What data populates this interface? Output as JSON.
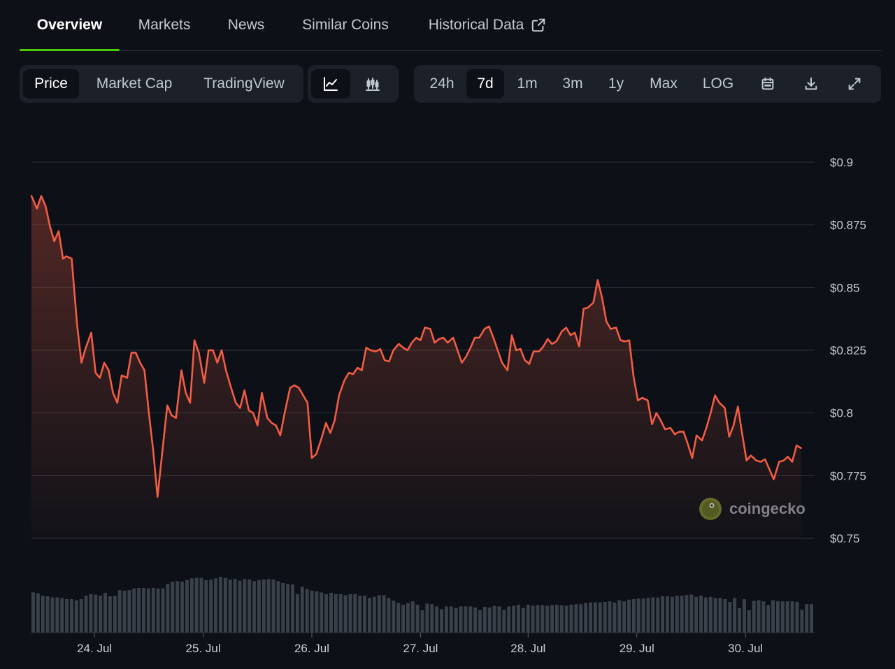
{
  "tabs": [
    {
      "label": "Overview",
      "active": true
    },
    {
      "label": "Markets",
      "active": false
    },
    {
      "label": "News",
      "active": false
    },
    {
      "label": "Similar Coins",
      "active": false
    },
    {
      "label": "Historical Data",
      "active": false,
      "icon": "external-link-icon"
    }
  ],
  "toolbar": {
    "metric": [
      {
        "label": "Price",
        "active": true
      },
      {
        "label": "Market Cap",
        "active": false
      },
      {
        "label": "TradingView",
        "active": false
      }
    ],
    "chart_styles": [
      {
        "icon": "line-chart-icon",
        "active": true
      },
      {
        "icon": "candlestick-chart-icon",
        "active": false
      }
    ],
    "ranges": [
      {
        "label": "24h",
        "active": false
      },
      {
        "label": "7d",
        "active": true
      },
      {
        "label": "1m",
        "active": false
      },
      {
        "label": "3m",
        "active": false
      },
      {
        "label": "1y",
        "active": false
      },
      {
        "label": "Max",
        "active": false
      },
      {
        "label": "LOG",
        "active": false
      }
    ],
    "actions": [
      {
        "icon": "calendar-icon"
      },
      {
        "icon": "download-icon"
      },
      {
        "icon": "fullscreen-icon"
      }
    ]
  },
  "watermark": {
    "text": "coingecko",
    "icon": "coingecko-logo-icon"
  },
  "colors": {
    "line": "#f25c45",
    "grid": "#2a3038",
    "volume": "#3a414b",
    "accent": "#4bcc00",
    "background": "#0d1117"
  },
  "chart_data": {
    "type": "line",
    "title": "",
    "xlabel": "",
    "ylabel": "",
    "x_range": [
      0.0,
      7.0
    ],
    "ylim": [
      0.75,
      0.9
    ],
    "y_ticks": [
      {
        "value": 0.9,
        "label": "$0.9"
      },
      {
        "value": 0.875,
        "label": "$0.875"
      },
      {
        "value": 0.85,
        "label": "$0.85"
      },
      {
        "value": 0.825,
        "label": "$0.825"
      },
      {
        "value": 0.8,
        "label": "$0.8"
      },
      {
        "value": 0.775,
        "label": "$0.775"
      },
      {
        "value": 0.75,
        "label": "$0.75"
      }
    ],
    "x_ticks": [
      {
        "value": 0.58,
        "label": "24. Jul"
      },
      {
        "value": 1.58,
        "label": "25. Jul"
      },
      {
        "value": 2.58,
        "label": "26. Jul"
      },
      {
        "value": 3.58,
        "label": "27. Jul"
      },
      {
        "value": 4.57,
        "label": "28. Jul"
      },
      {
        "value": 5.57,
        "label": "29. Jul"
      },
      {
        "value": 6.57,
        "label": "30. Jul"
      }
    ],
    "grid": true,
    "legend": "none",
    "series": [
      {
        "values": [
          [
            0.0,
            0.8865
          ],
          [
            0.05,
            0.8815
          ],
          [
            0.09,
            0.8865
          ],
          [
            0.13,
            0.8825
          ],
          [
            0.17,
            0.8745
          ],
          [
            0.21,
            0.8685
          ],
          [
            0.25,
            0.8725
          ],
          [
            0.29,
            0.8615
          ],
          [
            0.32,
            0.8625
          ],
          [
            0.37,
            0.8615
          ],
          [
            0.42,
            0.835
          ],
          [
            0.46,
            0.82
          ],
          [
            0.5,
            0.826
          ],
          [
            0.55,
            0.832
          ],
          [
            0.59,
            0.816
          ],
          [
            0.63,
            0.814
          ],
          [
            0.67,
            0.82
          ],
          [
            0.71,
            0.817
          ],
          [
            0.75,
            0.808
          ],
          [
            0.79,
            0.804
          ],
          [
            0.83,
            0.815
          ],
          [
            0.88,
            0.814
          ],
          [
            0.92,
            0.824
          ],
          [
            0.96,
            0.824
          ],
          [
            1.0,
            0.82
          ],
          [
            1.04,
            0.817
          ],
          [
            1.08,
            0.8
          ],
          [
            1.12,
            0.785
          ],
          [
            1.16,
            0.7665
          ],
          [
            1.21,
            0.787
          ],
          [
            1.25,
            0.803
          ],
          [
            1.29,
            0.799
          ],
          [
            1.33,
            0.798
          ],
          [
            1.38,
            0.817
          ],
          [
            1.42,
            0.808
          ],
          [
            1.46,
            0.804
          ],
          [
            1.5,
            0.829
          ],
          [
            1.54,
            0.824
          ],
          [
            1.59,
            0.812
          ],
          [
            1.63,
            0.825
          ],
          [
            1.67,
            0.825
          ],
          [
            1.71,
            0.82
          ],
          [
            1.75,
            0.825
          ],
          [
            1.79,
            0.817
          ],
          [
            1.83,
            0.811
          ],
          [
            1.88,
            0.804
          ],
          [
            1.92,
            0.802
          ],
          [
            1.96,
            0.809
          ],
          [
            2.0,
            0.801
          ],
          [
            2.04,
            0.8
          ],
          [
            2.08,
            0.795
          ],
          [
            2.12,
            0.808
          ],
          [
            2.17,
            0.798
          ],
          [
            2.21,
            0.796
          ],
          [
            2.25,
            0.795
          ],
          [
            2.29,
            0.791
          ],
          [
            2.33,
            0.8
          ],
          [
            2.38,
            0.81
          ],
          [
            2.42,
            0.811
          ],
          [
            2.46,
            0.81
          ],
          [
            2.5,
            0.807
          ],
          [
            2.54,
            0.804
          ],
          [
            2.58,
            0.782
          ],
          [
            2.62,
            0.7835
          ],
          [
            2.67,
            0.79
          ],
          [
            2.71,
            0.796
          ],
          [
            2.75,
            0.792
          ],
          [
            2.79,
            0.797
          ],
          [
            2.83,
            0.807
          ],
          [
            2.88,
            0.813
          ],
          [
            2.92,
            0.816
          ],
          [
            2.96,
            0.8155
          ],
          [
            3.0,
            0.818
          ],
          [
            3.04,
            0.817
          ],
          [
            3.08,
            0.826
          ],
          [
            3.12,
            0.825
          ],
          [
            3.17,
            0.8245
          ],
          [
            3.21,
            0.8255
          ],
          [
            3.25,
            0.821
          ],
          [
            3.29,
            0.8205
          ],
          [
            3.33,
            0.825
          ],
          [
            3.38,
            0.8275
          ],
          [
            3.42,
            0.826
          ],
          [
            3.46,
            0.825
          ],
          [
            3.5,
            0.828
          ],
          [
            3.54,
            0.83
          ],
          [
            3.58,
            0.829
          ],
          [
            3.62,
            0.834
          ],
          [
            3.67,
            0.8335
          ],
          [
            3.71,
            0.828
          ],
          [
            3.75,
            0.8295
          ],
          [
            3.79,
            0.83
          ],
          [
            3.83,
            0.828
          ],
          [
            3.88,
            0.83
          ],
          [
            3.92,
            0.825
          ],
          [
            3.96,
            0.82
          ],
          [
            4.0,
            0.8225
          ],
          [
            4.04,
            0.826
          ],
          [
            4.08,
            0.83
          ],
          [
            4.12,
            0.83
          ],
          [
            4.17,
            0.8335
          ],
          [
            4.21,
            0.8345
          ],
          [
            4.25,
            0.83
          ],
          [
            4.29,
            0.825
          ],
          [
            4.33,
            0.82
          ],
          [
            4.38,
            0.817
          ],
          [
            4.42,
            0.831
          ],
          [
            4.46,
            0.825
          ],
          [
            4.5,
            0.8255
          ],
          [
            4.54,
            0.821
          ],
          [
            4.58,
            0.8195
          ],
          [
            4.62,
            0.8245
          ],
          [
            4.67,
            0.8245
          ],
          [
            4.71,
            0.8265
          ],
          [
            4.75,
            0.8295
          ],
          [
            4.79,
            0.8275
          ],
          [
            4.83,
            0.8285
          ],
          [
            4.88,
            0.8325
          ],
          [
            4.92,
            0.834
          ],
          [
            4.96,
            0.831
          ],
          [
            5.0,
            0.832
          ],
          [
            5.04,
            0.8265
          ],
          [
            5.08,
            0.8415
          ],
          [
            5.12,
            0.842
          ],
          [
            5.17,
            0.844
          ],
          [
            5.21,
            0.853
          ],
          [
            5.25,
            0.846
          ],
          [
            5.29,
            0.8365
          ],
          [
            5.33,
            0.8335
          ],
          [
            5.38,
            0.834
          ],
          [
            5.42,
            0.829
          ],
          [
            5.46,
            0.8285
          ],
          [
            5.5,
            0.829
          ],
          [
            5.54,
            0.8145
          ],
          [
            5.58,
            0.805
          ],
          [
            5.62,
            0.806
          ],
          [
            5.67,
            0.805
          ],
          [
            5.71,
            0.7955
          ],
          [
            5.75,
            0.8
          ],
          [
            5.79,
            0.797
          ],
          [
            5.83,
            0.7935
          ],
          [
            5.88,
            0.794
          ],
          [
            5.92,
            0.7915
          ],
          [
            5.96,
            0.7925
          ],
          [
            6.0,
            0.7925
          ],
          [
            6.04,
            0.7875
          ],
          [
            6.08,
            0.782
          ],
          [
            6.12,
            0.791
          ],
          [
            6.17,
            0.789
          ],
          [
            6.21,
            0.794
          ],
          [
            6.25,
            0.8
          ],
          [
            6.29,
            0.807
          ],
          [
            6.33,
            0.804
          ],
          [
            6.38,
            0.802
          ],
          [
            6.42,
            0.7905
          ],
          [
            6.46,
            0.795
          ],
          [
            6.5,
            0.8025
          ],
          [
            6.54,
            0.7915
          ],
          [
            6.58,
            0.781
          ],
          [
            6.62,
            0.783
          ],
          [
            6.67,
            0.781
          ],
          [
            6.71,
            0.7805
          ],
          [
            6.75,
            0.7815
          ],
          [
            6.79,
            0.7775
          ],
          [
            6.83,
            0.7735
          ],
          [
            6.88,
            0.7805
          ],
          [
            6.92,
            0.781
          ],
          [
            6.96,
            0.7825
          ],
          [
            7.0,
            0.7805
          ],
          [
            7.04,
            0.787
          ],
          [
            7.08,
            0.786
          ]
        ]
      }
    ],
    "volume": [
      0.72,
      0.7,
      0.66,
      0.65,
      0.63,
      0.63,
      0.62,
      0.6,
      0.6,
      0.58,
      0.6,
      0.66,
      0.69,
      0.68,
      0.66,
      0.71,
      0.65,
      0.66,
      0.76,
      0.75,
      0.76,
      0.79,
      0.8,
      0.8,
      0.79,
      0.8,
      0.79,
      0.79,
      0.87,
      0.91,
      0.92,
      0.91,
      0.94,
      0.97,
      0.98,
      0.98,
      0.94,
      0.95,
      0.97,
      1.0,
      0.98,
      0.95,
      0.96,
      0.93,
      0.96,
      0.95,
      0.92,
      0.94,
      0.95,
      0.96,
      0.95,
      0.92,
      0.89,
      0.87,
      0.86,
      0.69,
      0.82,
      0.78,
      0.75,
      0.74,
      0.72,
      0.69,
      0.71,
      0.69,
      0.69,
      0.67,
      0.69,
      0.69,
      0.66,
      0.66,
      0.62,
      0.64,
      0.67,
      0.67,
      0.62,
      0.57,
      0.53,
      0.5,
      0.53,
      0.56,
      0.5,
      0.4,
      0.52,
      0.51,
      0.47,
      0.42,
      0.47,
      0.47,
      0.44,
      0.47,
      0.47,
      0.47,
      0.45,
      0.4,
      0.46,
      0.45,
      0.48,
      0.47,
      0.41,
      0.47,
      0.48,
      0.5,
      0.44,
      0.5,
      0.48,
      0.49,
      0.49,
      0.48,
      0.49,
      0.5,
      0.49,
      0.48,
      0.5,
      0.51,
      0.51,
      0.53,
      0.54,
      0.54,
      0.54,
      0.55,
      0.56,
      0.54,
      0.58,
      0.56,
      0.59,
      0.6,
      0.61,
      0.61,
      0.62,
      0.63,
      0.63,
      0.65,
      0.65,
      0.64,
      0.66,
      0.66,
      0.67,
      0.68,
      0.64,
      0.66,
      0.63,
      0.64,
      0.62,
      0.62,
      0.6,
      0.55,
      0.62,
      0.44,
      0.6,
      0.4,
      0.57,
      0.58,
      0.56,
      0.49,
      0.58,
      0.56,
      0.56,
      0.56,
      0.56,
      0.55,
      0.41,
      0.51,
      0.51
    ]
  }
}
